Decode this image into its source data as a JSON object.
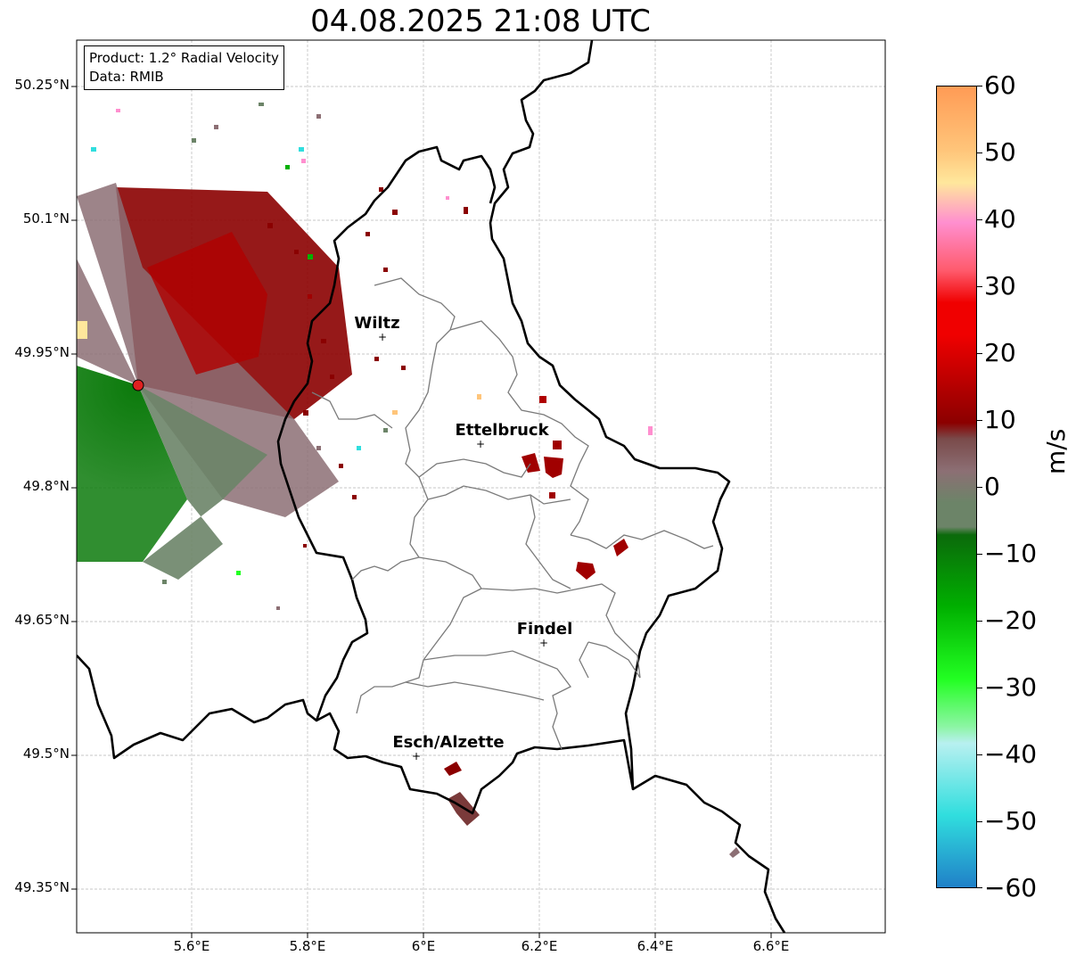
{
  "title": "04.08.2025 21:08 UTC",
  "info": {
    "product": "Product: 1.2° Radial Velocity",
    "data": "Data: RMIB"
  },
  "axes": {
    "lat_labels": [
      "50.25°N",
      "50.1°N",
      "49.95°N",
      "49.8°N",
      "49.65°N",
      "49.5°N",
      "49.35°N"
    ],
    "lon_labels": [
      "5.6°E",
      "5.8°E",
      "6°E",
      "6.2°E",
      "6.4°E",
      "6.6°E"
    ]
  },
  "cities": [
    {
      "name": "Wiltz"
    },
    {
      "name": "Ettelbruck"
    },
    {
      "name": "Findel"
    },
    {
      "name": "Esch/Alzette"
    }
  ],
  "colorbar": {
    "label": "m/s",
    "ticks": [
      "60",
      "50",
      "40",
      "30",
      "20",
      "10",
      "0",
      "−10",
      "−20",
      "−30",
      "−40",
      "−50",
      "−60"
    ],
    "colors": {
      "orange": "#ff9b55",
      "light_orange": "#ffc57a",
      "yellow": "#ffe79c",
      "pink": "#ff8fcf",
      "salmon": "#ff5a6c",
      "red": "#f00000",
      "dark_red": "#8b0000",
      "brownish": "#7a4a4a",
      "grey_pink": "#8c6f74",
      "grey_green": "#6c8468",
      "dark_green": "#0b6a0b",
      "green": "#00b000",
      "bright_green": "#22ff22",
      "mint": "#8df5a5",
      "light_cyan": "#b8f0f0",
      "cyan": "#30dede",
      "blue": "#2080c8"
    }
  }
}
